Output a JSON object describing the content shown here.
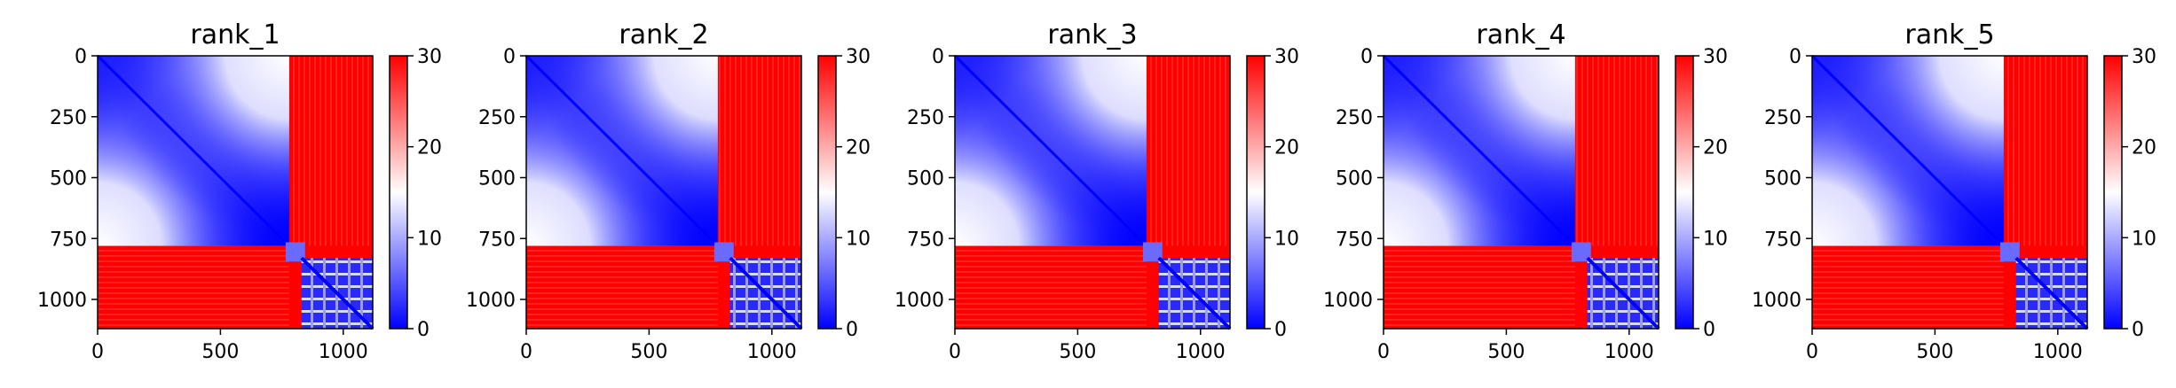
{
  "chart_data": [
    {
      "type": "heatmap",
      "title": "rank_1",
      "matrix_size": 1120,
      "xticks": [
        0,
        500,
        1000
      ],
      "yticks": [
        0,
        250,
        500,
        750,
        1000
      ],
      "colorbar": {
        "range": [
          0,
          30
        ],
        "ticks": [
          0,
          10,
          20,
          30
        ],
        "colormap": "bwr"
      },
      "blocks": [
        {
          "start": 0,
          "end": 780,
          "value_range": [
            0,
            20
          ]
        },
        {
          "start": 830,
          "end": 1120,
          "value_range": [
            0,
            12
          ]
        },
        {
          "offdiagonal": true,
          "value": 30
        }
      ]
    },
    {
      "type": "heatmap",
      "title": "rank_2",
      "matrix_size": 1120,
      "xticks": [
        0,
        500,
        1000
      ],
      "yticks": [
        0,
        250,
        500,
        750,
        1000
      ],
      "colorbar": {
        "range": [
          0,
          30
        ],
        "ticks": [
          0,
          10,
          20,
          30
        ],
        "colormap": "bwr"
      },
      "blocks": [
        {
          "start": 0,
          "end": 780,
          "value_range": [
            0,
            20
          ]
        },
        {
          "start": 830,
          "end": 1120,
          "value_range": [
            0,
            12
          ]
        },
        {
          "offdiagonal": true,
          "value": 30
        }
      ]
    },
    {
      "type": "heatmap",
      "title": "rank_3",
      "matrix_size": 1120,
      "xticks": [
        0,
        500,
        1000
      ],
      "yticks": [
        0,
        250,
        500,
        750,
        1000
      ],
      "colorbar": {
        "range": [
          0,
          30
        ],
        "ticks": [
          0,
          10,
          20,
          30
        ],
        "colormap": "bwr"
      },
      "blocks": [
        {
          "start": 0,
          "end": 780,
          "value_range": [
            0,
            20
          ]
        },
        {
          "start": 830,
          "end": 1120,
          "value_range": [
            0,
            12
          ]
        },
        {
          "offdiagonal": true,
          "value": 30
        }
      ]
    },
    {
      "type": "heatmap",
      "title": "rank_4",
      "matrix_size": 1120,
      "xticks": [
        0,
        500,
        1000
      ],
      "yticks": [
        0,
        250,
        500,
        750,
        1000
      ],
      "colorbar": {
        "range": [
          0,
          30
        ],
        "ticks": [
          0,
          10,
          20,
          30
        ],
        "colormap": "bwr"
      },
      "blocks": [
        {
          "start": 0,
          "end": 780,
          "value_range": [
            0,
            20
          ]
        },
        {
          "start": 830,
          "end": 1120,
          "value_range": [
            0,
            12
          ]
        },
        {
          "offdiagonal": true,
          "value": 30
        }
      ]
    },
    {
      "type": "heatmap",
      "title": "rank_5",
      "matrix_size": 1120,
      "xticks": [
        0,
        500,
        1000
      ],
      "yticks": [
        0,
        250,
        500,
        750,
        1000
      ],
      "colorbar": {
        "range": [
          0,
          30
        ],
        "ticks": [
          0,
          10,
          20,
          30
        ],
        "colormap": "bwr"
      },
      "blocks": [
        {
          "start": 0,
          "end": 780,
          "value_range": [
            0,
            20
          ]
        },
        {
          "start": 830,
          "end": 1120,
          "value_range": [
            0,
            12
          ]
        },
        {
          "offdiagonal": true,
          "value": 30
        }
      ]
    }
  ],
  "colors": {
    "low": "#0000ff",
    "mid": "#ffffff",
    "high": "#ff0000"
  }
}
